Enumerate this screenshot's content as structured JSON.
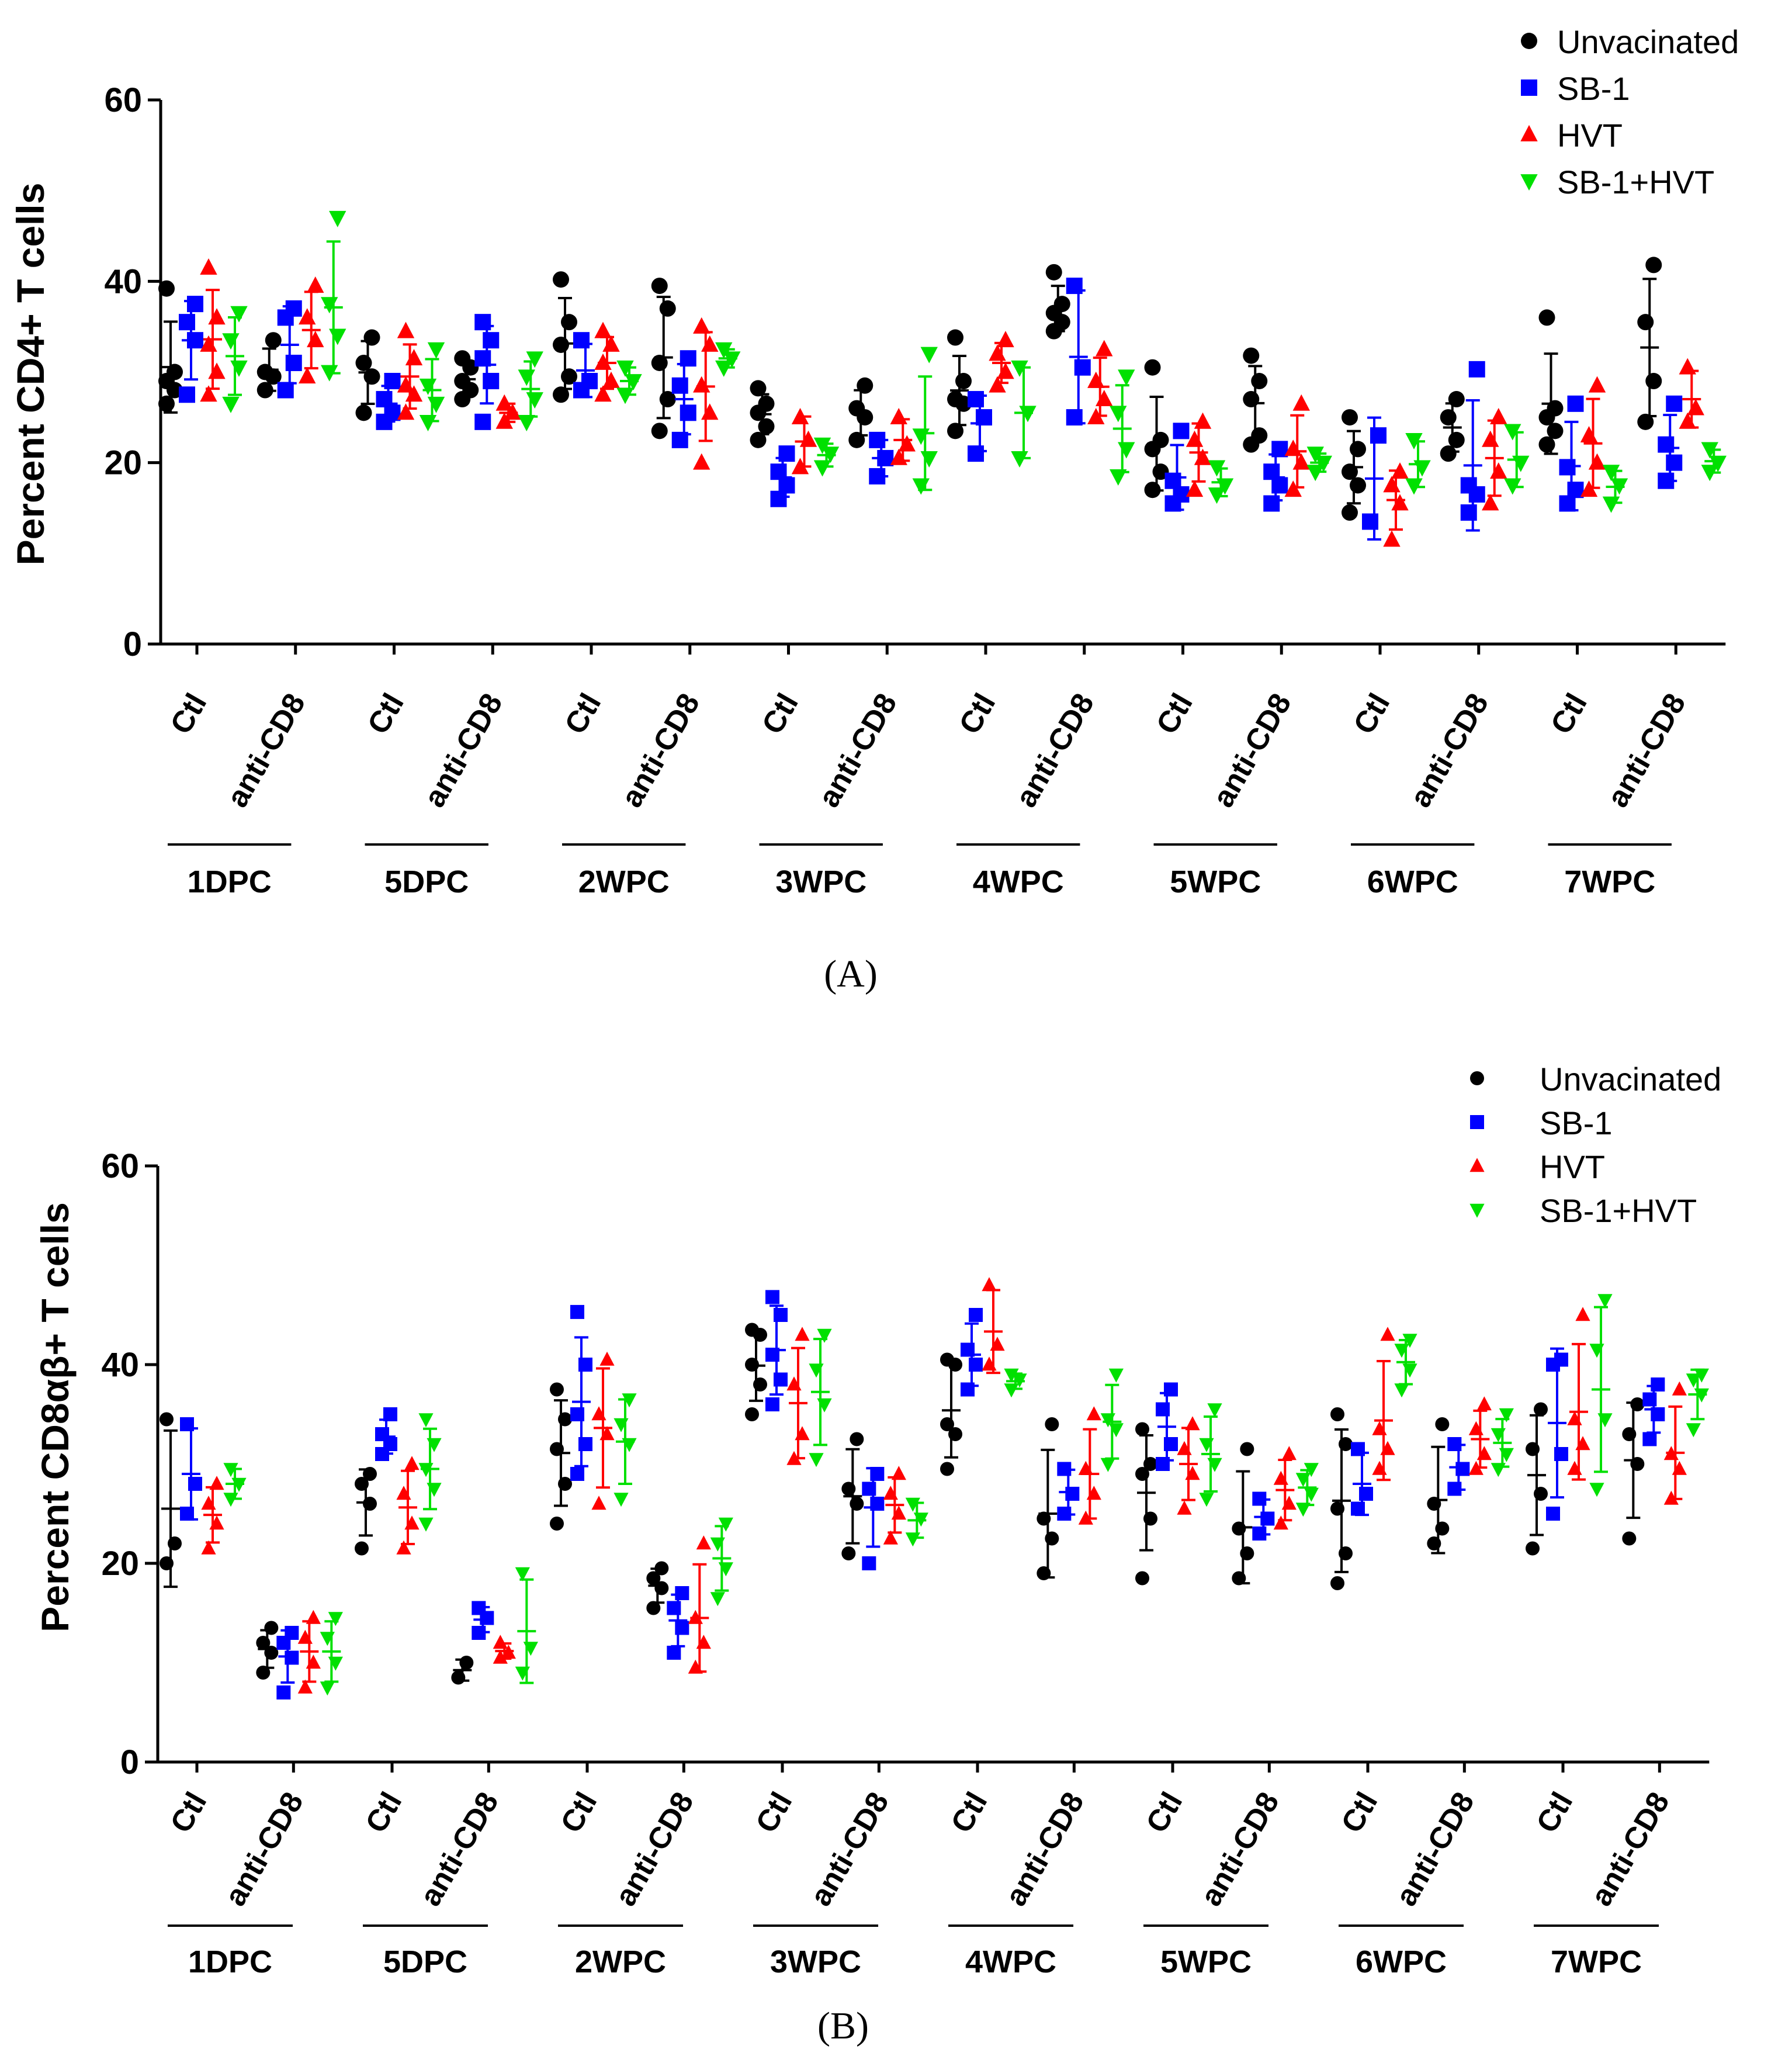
{
  "chart_data": [
    {
      "type": "scatter",
      "panel_label": "(A)",
      "ylabel": "Percent CD4+ T cells",
      "ylim": [
        0,
        60
      ],
      "yticks": [
        0,
        20,
        40,
        60
      ],
      "categories": [
        "Ctl",
        "anti-CD8"
      ],
      "groups": [
        "1DPC",
        "5DPC",
        "2WPC",
        "3WPC",
        "4WPC",
        "5WPC",
        "6WPC",
        "7WPC"
      ],
      "legend_position": "top-right",
      "series": [
        {
          "name": "Unvacinated",
          "color": "#000000",
          "marker": "circle",
          "points": [
            [
              [
                26.5,
                28,
                29,
                30,
                39.2
              ],
              [
                28,
                29.5,
                30,
                33.5
              ]
            ],
            [
              [
                25.5,
                29.5,
                31,
                33.8
              ],
              [
                27,
                28,
                29,
                30.5,
                31.5
              ]
            ],
            [
              [
                27.5,
                29.5,
                33,
                35.5,
                40.2
              ],
              [
                23.5,
                27,
                31,
                37,
                39.5
              ]
            ],
            [
              [
                22.5,
                24,
                25.5,
                26.5,
                28.2
              ],
              [
                22.5,
                25,
                26,
                28.5
              ]
            ],
            [
              [
                23.5,
                26.5,
                27,
                29,
                33.8
              ],
              [
                34.5,
                35.5,
                36.5,
                37.5,
                41
              ]
            ],
            [
              [
                17,
                19,
                21.5,
                22.5,
                30.5
              ],
              [
                22,
                23,
                27,
                29,
                31.8
              ]
            ],
            [
              [
                14.5,
                17.5,
                19,
                21.5,
                25
              ],
              [
                21,
                22.5,
                25,
                27
              ]
            ],
            [
              [
                22,
                23.5,
                25,
                26,
                36
              ],
              [
                24.5,
                29,
                35.5,
                41.8
              ]
            ]
          ]
        },
        {
          "name": "SB-1",
          "color": "#0000ff",
          "marker": "square",
          "points": [
            [
              [
                27.5,
                33.5,
                35.5,
                37.5
              ],
              [
                28,
                31,
                36,
                37
              ]
            ],
            [
              [
                24.5,
                25.5,
                27,
                29
              ],
              [
                24.5,
                29,
                31.5,
                33.5,
                35.5
              ]
            ],
            [
              [
                28,
                29,
                33.5
              ],
              [
                22.5,
                25.5,
                28.5,
                31.5
              ]
            ],
            [
              [
                16,
                17.5,
                19,
                21
              ],
              [
                18.5,
                20.5,
                22.5
              ]
            ],
            [
              [
                21,
                25,
                27
              ],
              [
                25,
                30.5,
                39.5
              ]
            ],
            [
              [
                15.5,
                16.5,
                18,
                23.5
              ],
              [
                15.5,
                17.5,
                19,
                21.5
              ]
            ],
            [
              [
                13.5,
                23
              ],
              [
                14.5,
                16.5,
                17.5,
                30.3
              ]
            ],
            [
              [
                15.5,
                17,
                19.5,
                26.5
              ],
              [
                18,
                20,
                22,
                26.5
              ]
            ]
          ]
        },
        {
          "name": "HVT",
          "color": "#ff0000",
          "marker": "triangle-up",
          "points": [
            [
              [
                27.5,
                30,
                33,
                36,
                41.5
              ],
              [
                29.5,
                33.5,
                36,
                39.5
              ]
            ],
            [
              [
                25.5,
                27.5,
                28.5,
                31.5,
                34.5
              ],
              [
                24.5,
                25.5,
                26.5
              ]
            ],
            [
              [
                27.5,
                29,
                31,
                33,
                34.5
              ],
              [
                20,
                25.5,
                28.5,
                33,
                35
              ]
            ],
            [
              [
                19.5,
                22.5,
                25
              ],
              [
                20.5,
                22,
                25
              ]
            ],
            [
              [
                28.5,
                30,
                32,
                33.5
              ],
              [
                25,
                27,
                29,
                32.5
              ]
            ],
            [
              [
                17,
                20.5,
                22.5,
                24.5
              ],
              [
                17,
                20,
                21.5,
                26.5
              ]
            ],
            [
              [
                11.5,
                15.5,
                17.5,
                19
              ],
              [
                15.5,
                19,
                22.5,
                25
              ]
            ],
            [
              [
                17,
                20,
                23,
                28.5
              ],
              [
                24.5,
                26,
                30.5
              ]
            ]
          ]
        },
        {
          "name": "SB-1+HVT",
          "color": "#00e000",
          "marker": "triangle-down",
          "points": [
            [
              [
                26.5,
                30.5,
                33.5,
                36.5
              ],
              [
                30,
                34,
                37.5,
                47
              ]
            ],
            [
              [
                24.5,
                26.5,
                28.5,
                32.5
              ],
              [
                24.5,
                27,
                29.5,
                31.5
              ]
            ],
            [
              [
                27.5,
                29,
                30.5
              ],
              [
                30.5,
                31.5,
                32.5
              ]
            ],
            [
              [
                19.5,
                21,
                22
              ],
              [
                17.5,
                20.5,
                23,
                32
              ]
            ],
            [
              [
                20.5,
                25.5,
                30.5
              ],
              [
                18.5,
                21.5,
                25.5,
                29.5
              ]
            ],
            [
              [
                16.5,
                17.5,
                19.5
              ],
              [
                19,
                20,
                21
              ]
            ],
            [
              [
                17.5,
                19.5,
                22.5
              ],
              [
                17.5,
                20,
                23.5
              ]
            ],
            [
              [
                15.5,
                17.5,
                19
              ],
              [
                19,
                20,
                21.5
              ]
            ]
          ]
        }
      ]
    },
    {
      "type": "scatter",
      "panel_label": "(B)",
      "ylabel": "Percent CD8αβ+ T cells",
      "ylim": [
        0,
        60
      ],
      "yticks": [
        0,
        20,
        40,
        60
      ],
      "categories": [
        "Ctl",
        "anti-CD8"
      ],
      "groups": [
        "1DPC",
        "5DPC",
        "2WPC",
        "3WPC",
        "4WPC",
        "5WPC",
        "6WPC",
        "7WPC"
      ],
      "legend_position": "top-right",
      "series": [
        {
          "name": "Unvacinated",
          "color": "#000000",
          "marker": "circle",
          "points": [
            [
              [
                20,
                22,
                34.5
              ],
              [
                9,
                11,
                12,
                13.5
              ]
            ],
            [
              [
                21.5,
                26,
                28,
                29
              ],
              [
                8.5,
                10
              ]
            ],
            [
              [
                24,
                28,
                31.5,
                34.5,
                37.5
              ],
              [
                15.5,
                17.5,
                18.5,
                19.5
              ]
            ],
            [
              [
                35,
                38,
                40,
                43,
                43.5
              ],
              [
                21,
                26,
                27.5,
                32.5
              ]
            ],
            [
              [
                29.5,
                33,
                34,
                40,
                40.5
              ],
              [
                19,
                22.5,
                24.5,
                34
              ]
            ],
            [
              [
                18.5,
                24.5,
                29,
                30,
                33.5
              ],
              [
                18.5,
                21,
                23.5,
                31.5
              ]
            ],
            [
              [
                18,
                21,
                25.5,
                32,
                35
              ],
              [
                22,
                23.5,
                26,
                34
              ]
            ],
            [
              [
                21.5,
                27,
                31.5,
                35.5
              ],
              [
                22.5,
                30,
                33,
                36
              ]
            ]
          ]
        },
        {
          "name": "SB-1",
          "color": "#0000ff",
          "marker": "square",
          "points": [
            [
              [
                25,
                28,
                34
              ],
              [
                7,
                10.5,
                12,
                13
              ]
            ],
            [
              [
                31,
                32,
                33,
                35
              ],
              [
                13,
                14.5,
                15.5
              ]
            ],
            [
              [
                29,
                32,
                35,
                40,
                45.3
              ],
              [
                11,
                13.5,
                15.5,
                17
              ]
            ],
            [
              [
                36,
                38.5,
                41,
                45,
                46.8
              ],
              [
                20,
                26,
                27.5,
                29
              ]
            ],
            [
              [
                37.5,
                40,
                41.5,
                45
              ],
              [
                25,
                27,
                29.5
              ]
            ],
            [
              [
                30,
                32,
                35.5,
                37.5
              ],
              [
                23,
                24.5,
                26.5
              ]
            ],
            [
              [
                25.5,
                27,
                31.5
              ],
              [
                27.5,
                29.5,
                32
              ]
            ],
            [
              [
                25,
                31,
                40,
                40.5
              ],
              [
                32.5,
                35,
                36.5,
                38
              ]
            ]
          ]
        },
        {
          "name": "HVT",
          "color": "#ff0000",
          "marker": "triangle-up",
          "points": [
            [
              [
                21.5,
                24,
                26,
                28
              ],
              [
                7.5,
                10,
                12.5,
                14.5
              ]
            ],
            [
              [
                21.5,
                24,
                27,
                30
              ],
              [
                10.5,
                11,
                12
              ]
            ],
            [
              [
                26,
                33,
                35,
                40.5
              ],
              [
                9.5,
                12,
                14.5,
                22
              ]
            ],
            [
              [
                30.5,
                33,
                38,
                43
              ],
              [
                22.5,
                25,
                27,
                29
              ]
            ],
            [
              [
                40,
                42,
                48
              ],
              [
                24.5,
                27,
                29.5,
                35
              ]
            ],
            [
              [
                25.5,
                29,
                31.5,
                34
              ],
              [
                24,
                26,
                28.5,
                31
              ]
            ],
            [
              [
                29.5,
                31.5,
                33.5,
                43
              ],
              [
                29.5,
                31,
                33.5,
                36
              ]
            ],
            [
              [
                29.5,
                32,
                34.5,
                45
              ],
              [
                26.5,
                29.5,
                31,
                37.5
              ]
            ]
          ]
        },
        {
          "name": "SB-1+HVT",
          "color": "#00e000",
          "marker": "triangle-down",
          "points": [
            [
              [
                26.5,
                28,
                29.5
              ],
              [
                7.5,
                10,
                12.5,
                14.5
              ]
            ],
            [
              [
                24,
                27.5,
                29.5,
                32,
                34.5
              ],
              [
                9,
                11.5,
                19
              ]
            ],
            [
              [
                26.5,
                32,
                34,
                36.5
              ],
              [
                16.5,
                19.5,
                22,
                24
              ]
            ],
            [
              [
                30.5,
                36,
                39.5,
                43
              ],
              [
                22.5,
                24.5,
                26
              ]
            ],
            [
              [
                37.5,
                38.5,
                39
              ],
              [
                30,
                33.5,
                34.5,
                39
              ]
            ],
            [
              [
                26.5,
                30,
                32,
                35.5
              ],
              [
                25.5,
                27,
                28.5,
                29.5
              ]
            ],
            [
              [
                37.5,
                39.5,
                41.5,
                42.5
              ],
              [
                29.5,
                31,
                33,
                35
              ]
            ],
            [
              [
                27.5,
                34.5,
                41.5,
                46.5
              ],
              [
                33.5,
                37,
                38.5,
                39
              ]
            ]
          ]
        }
      ]
    }
  ]
}
